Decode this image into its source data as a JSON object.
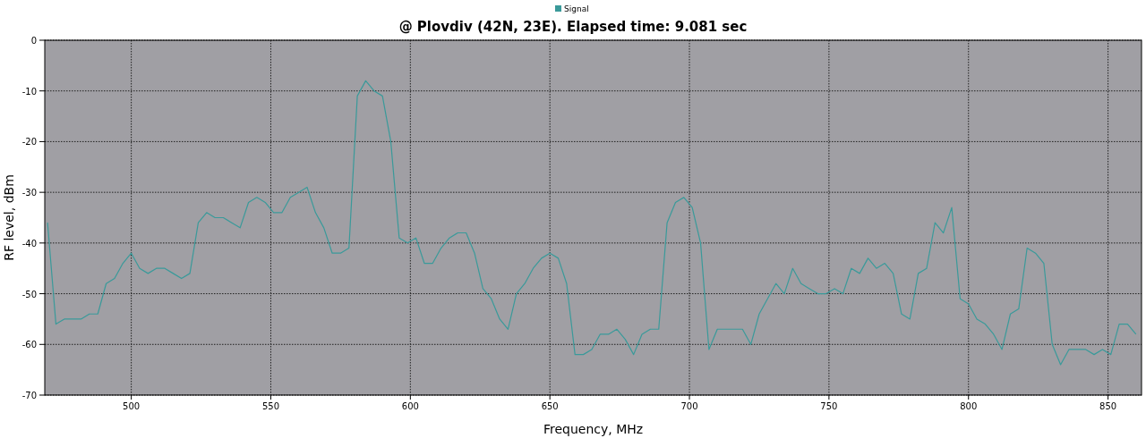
{
  "chart_data": {
    "type": "line",
    "title": "@ Plovdiv (42N, 23E). Elapsed time: 9.081 sec",
    "xlabel": "Frequency, MHz",
    "ylabel": "RF level, dBm",
    "x": [
      470,
      473,
      476,
      479,
      482,
      485,
      488,
      491,
      494,
      497,
      500,
      503,
      506,
      509,
      512,
      515,
      518,
      521,
      524,
      527,
      530,
      533,
      536,
      539,
      542,
      545,
      548,
      551,
      554,
      557,
      560,
      563,
      566,
      569,
      572,
      575,
      578,
      581,
      584,
      587,
      590,
      593,
      596,
      599,
      602,
      605,
      608,
      611,
      614,
      617,
      620,
      623,
      626,
      629,
      632,
      635,
      638,
      641,
      644,
      647,
      650,
      653,
      656,
      659,
      662,
      665,
      668,
      671,
      674,
      677,
      680,
      683,
      686,
      689,
      692,
      695,
      698,
      701,
      704,
      707,
      710,
      713,
      716,
      719,
      722,
      725,
      728,
      731,
      734,
      737,
      740,
      743,
      746,
      749,
      752,
      755,
      758,
      761,
      764,
      767,
      770,
      773,
      776,
      779,
      782,
      785,
      788,
      791,
      794,
      797,
      800,
      803,
      806,
      809,
      812,
      815,
      818,
      821,
      824,
      827,
      830,
      833,
      836,
      839,
      842,
      845,
      848,
      851,
      854,
      857,
      860
    ],
    "series": [
      {
        "name": "Signal",
        "color": "#3a9a9a",
        "values": [
          -36,
          -56,
          -55,
          -55,
          -55,
          -54,
          -54,
          -48,
          -47,
          -44,
          -42,
          -45,
          -46,
          -45,
          -45,
          -46,
          -47,
          -46,
          -36,
          -34,
          -35,
          -35,
          -36,
          -37,
          -32,
          -31,
          -32,
          -34,
          -34,
          -31,
          -30,
          -29,
          -34,
          -37,
          -42,
          -42,
          -41,
          -11,
          -8,
          -10,
          -11,
          -20,
          -39,
          -40,
          -39,
          -44,
          -44,
          -41,
          -39,
          -38,
          -38,
          -42,
          -49,
          -51,
          -55,
          -57,
          -50,
          -48,
          -45,
          -43,
          -42,
          -43,
          -48,
          -62,
          -62,
          -61,
          -58,
          -58,
          -57,
          -59,
          -62,
          -58,
          -57,
          -57,
          -36,
          -32,
          -31,
          -33,
          -40,
          -61,
          -57,
          -57,
          -57,
          -57,
          -60,
          -54,
          -51,
          -48,
          -50,
          -45,
          -48,
          -49,
          -50,
          -50,
          -49,
          -50,
          -45,
          -46,
          -43,
          -45,
          -44,
          -46,
          -54,
          -55,
          -46,
          -45,
          -36,
          -38,
          -33,
          -51,
          -52,
          -55,
          -56,
          -58,
          -61,
          -54,
          -53,
          -41,
          -42,
          -44,
          -60,
          -64,
          -61,
          -61,
          -61,
          -62,
          -61,
          -62,
          -56,
          -56,
          -58
        ]
      }
    ],
    "xlim": [
      469,
      862
    ],
    "xticks": [
      500,
      550,
      600,
      650,
      700,
      750,
      800,
      850
    ],
    "ylim": [
      -70,
      0
    ],
    "yticks": [
      0,
      -10,
      -20,
      -30,
      -40,
      -50,
      -60,
      -70
    ],
    "grid": true,
    "legend": "top",
    "line_style": "solid",
    "marker": "none"
  }
}
